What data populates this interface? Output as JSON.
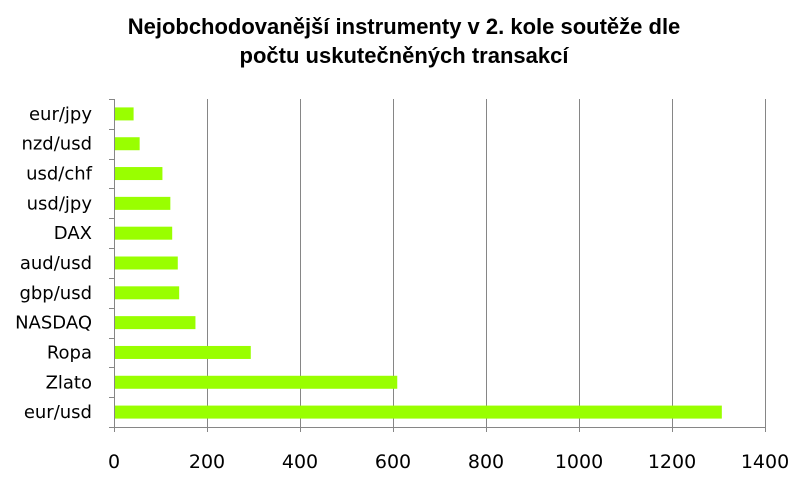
{
  "chart_data": {
    "type": "bar",
    "orientation": "horizontal",
    "title_lines": [
      "Nejobchodovanější instrumenty v 2. kole soutěže dle",
      "počtu uskutečněných transakcí"
    ],
    "categories": [
      "eur/jpy",
      "nzd/usd",
      "usd/chf",
      "usd/jpy",
      "DAX",
      "aud/usd",
      "gbp/usd",
      "NASDAQ",
      "Ropa",
      "Zlato",
      "eur/usd"
    ],
    "values": [
      40,
      53,
      102,
      119,
      123,
      135,
      138,
      173,
      292,
      607,
      1305
    ],
    "xlim": [
      0,
      1400
    ],
    "x_ticks": [
      0,
      200,
      400,
      600,
      800,
      1000,
      1200,
      1400
    ],
    "grid": "vertical",
    "bar_color": "#99ff00",
    "legend": "none"
  }
}
